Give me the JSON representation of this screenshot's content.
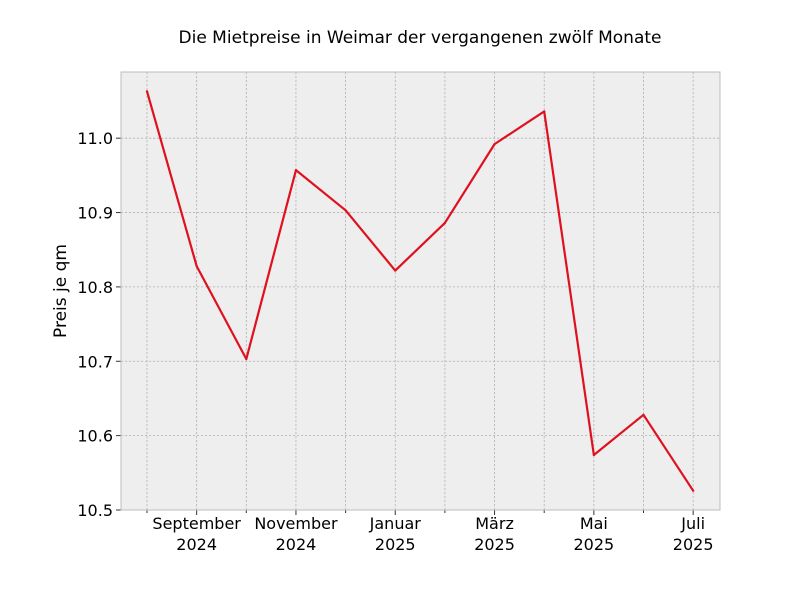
{
  "chart_data": {
    "type": "line",
    "title": "Die Mietpreise in Weimar der vergangenen zwölf Monate",
    "xlabel": "",
    "ylabel": "Preis je qm",
    "x": [
      "2024-08",
      "2024-09",
      "2024-10",
      "2024-11",
      "2024-12",
      "2025-01",
      "2025-02",
      "2025-03",
      "2025-04",
      "2025-05",
      "2025-06",
      "2025-07"
    ],
    "series": [
      {
        "values": [
          11.063,
          10.828,
          10.703,
          10.957,
          10.903,
          10.822,
          10.886,
          10.992,
          11.036,
          10.574,
          10.628,
          10.526
        ],
        "color": "#e0111f"
      }
    ],
    "ylim": [
      10.5,
      11.089
    ],
    "yticks": [
      {
        "value": 10.5,
        "label": "10.5"
      },
      {
        "value": 10.6,
        "label": "10.6"
      },
      {
        "value": 10.7,
        "label": "10.7"
      },
      {
        "value": 10.8,
        "label": "10.8"
      },
      {
        "value": 10.9,
        "label": "10.9"
      },
      {
        "value": 11.0,
        "label": "11.0"
      }
    ],
    "xticks": [
      {
        "month": "2024-09",
        "line1": "September",
        "line2": "2024"
      },
      {
        "month": "2024-11",
        "line1": "November",
        "line2": "2024"
      },
      {
        "month": "2025-01",
        "line1": "Januar",
        "line2": "2025"
      },
      {
        "month": "2025-03",
        "line1": "März",
        "line2": "2025"
      },
      {
        "month": "2025-05",
        "line1": "Mai",
        "line2": "2025"
      },
      {
        "month": "2025-07",
        "line1": "Juli",
        "line2": "2025"
      }
    ],
    "minor_xticks": [
      "2024-08",
      "2024-10",
      "2024-12",
      "2025-02",
      "2025-04",
      "2025-06"
    ],
    "grid": true,
    "colors": {
      "plot_background": "#eeeeee",
      "grid": "#b2b2b2",
      "frame": "#bcbcbc"
    }
  }
}
